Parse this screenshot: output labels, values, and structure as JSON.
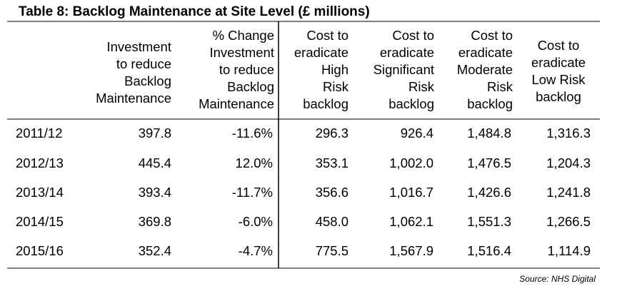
{
  "title": "Table 8: Backlog Maintenance at Site Level (£ millions)",
  "columns": [
    "Investment\nto reduce\nBacklog\nMaintenance",
    "% Change\nInvestment\nto reduce\nBacklog\nMaintenance",
    "Cost to\neradicate\nHigh\nRisk\nbacklog",
    "Cost to\neradicate\nSignificant\nRisk\nbacklog",
    "Cost to\neradicate\nModerate\nRisk\nbacklog",
    "Cost to\neradicate\nLow Risk\nbacklog"
  ],
  "rows": [
    {
      "year": "2011/12",
      "values": [
        "397.8",
        "-11.6%",
        "296.3",
        "926.4",
        "1,484.8",
        "1,316.3"
      ]
    },
    {
      "year": "2012/13",
      "values": [
        "445.4",
        "12.0%",
        "353.1",
        "1,002.0",
        "1,476.5",
        "1,204.3"
      ]
    },
    {
      "year": "2013/14",
      "values": [
        "393.4",
        "-11.7%",
        "356.6",
        "1,016.7",
        "1,426.6",
        "1,241.8"
      ]
    },
    {
      "year": "2014/15",
      "values": [
        "369.8",
        "-6.0%",
        "458.0",
        "1,062.1",
        "1,551.3",
        "1,266.5"
      ]
    },
    {
      "year": "2015/16",
      "values": [
        "352.4",
        "-4.7%",
        "775.5",
        "1,567.9",
        "1,516.4",
        "1,114.9"
      ]
    }
  ],
  "source": "Source: NHS Digital"
}
